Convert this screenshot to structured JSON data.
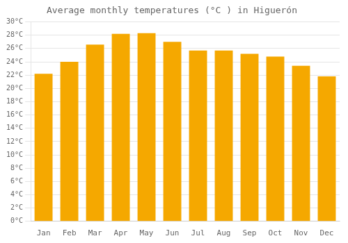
{
  "chart_data": {
    "type": "bar",
    "title": "Average monthly temperatures (°C ) in Higuerón",
    "categories": [
      "Jan",
      "Feb",
      "Mar",
      "Apr",
      "May",
      "Jun",
      "Jul",
      "Aug",
      "Sep",
      "Oct",
      "Nov",
      "Dec"
    ],
    "values": [
      22.2,
      24.0,
      26.6,
      28.2,
      28.3,
      27.0,
      25.7,
      25.7,
      25.2,
      24.8,
      23.4,
      21.8
    ],
    "color": "#F5A800",
    "ylim": [
      0,
      30
    ],
    "yticks": [
      {
        "value": 0,
        "label": "0°C"
      },
      {
        "value": 2,
        "label": "2°C"
      },
      {
        "value": 4,
        "label": "4°C"
      },
      {
        "value": 6,
        "label": "6°C"
      },
      {
        "value": 8,
        "label": "8°C"
      },
      {
        "value": 10,
        "label": "10°C"
      },
      {
        "value": 12,
        "label": "12°C"
      },
      {
        "value": 14,
        "label": "14°C"
      },
      {
        "value": 16,
        "label": "16°C"
      },
      {
        "value": 18,
        "label": "18°C"
      },
      {
        "value": 20,
        "label": "20°C"
      },
      {
        "value": 22,
        "label": "22°C"
      },
      {
        "value": 24,
        "label": "24°C"
      },
      {
        "value": 26,
        "label": "26°C"
      },
      {
        "value": 28,
        "label": "28°C"
      },
      {
        "value": 30,
        "label": "30°C"
      }
    ],
    "grid": true
  }
}
